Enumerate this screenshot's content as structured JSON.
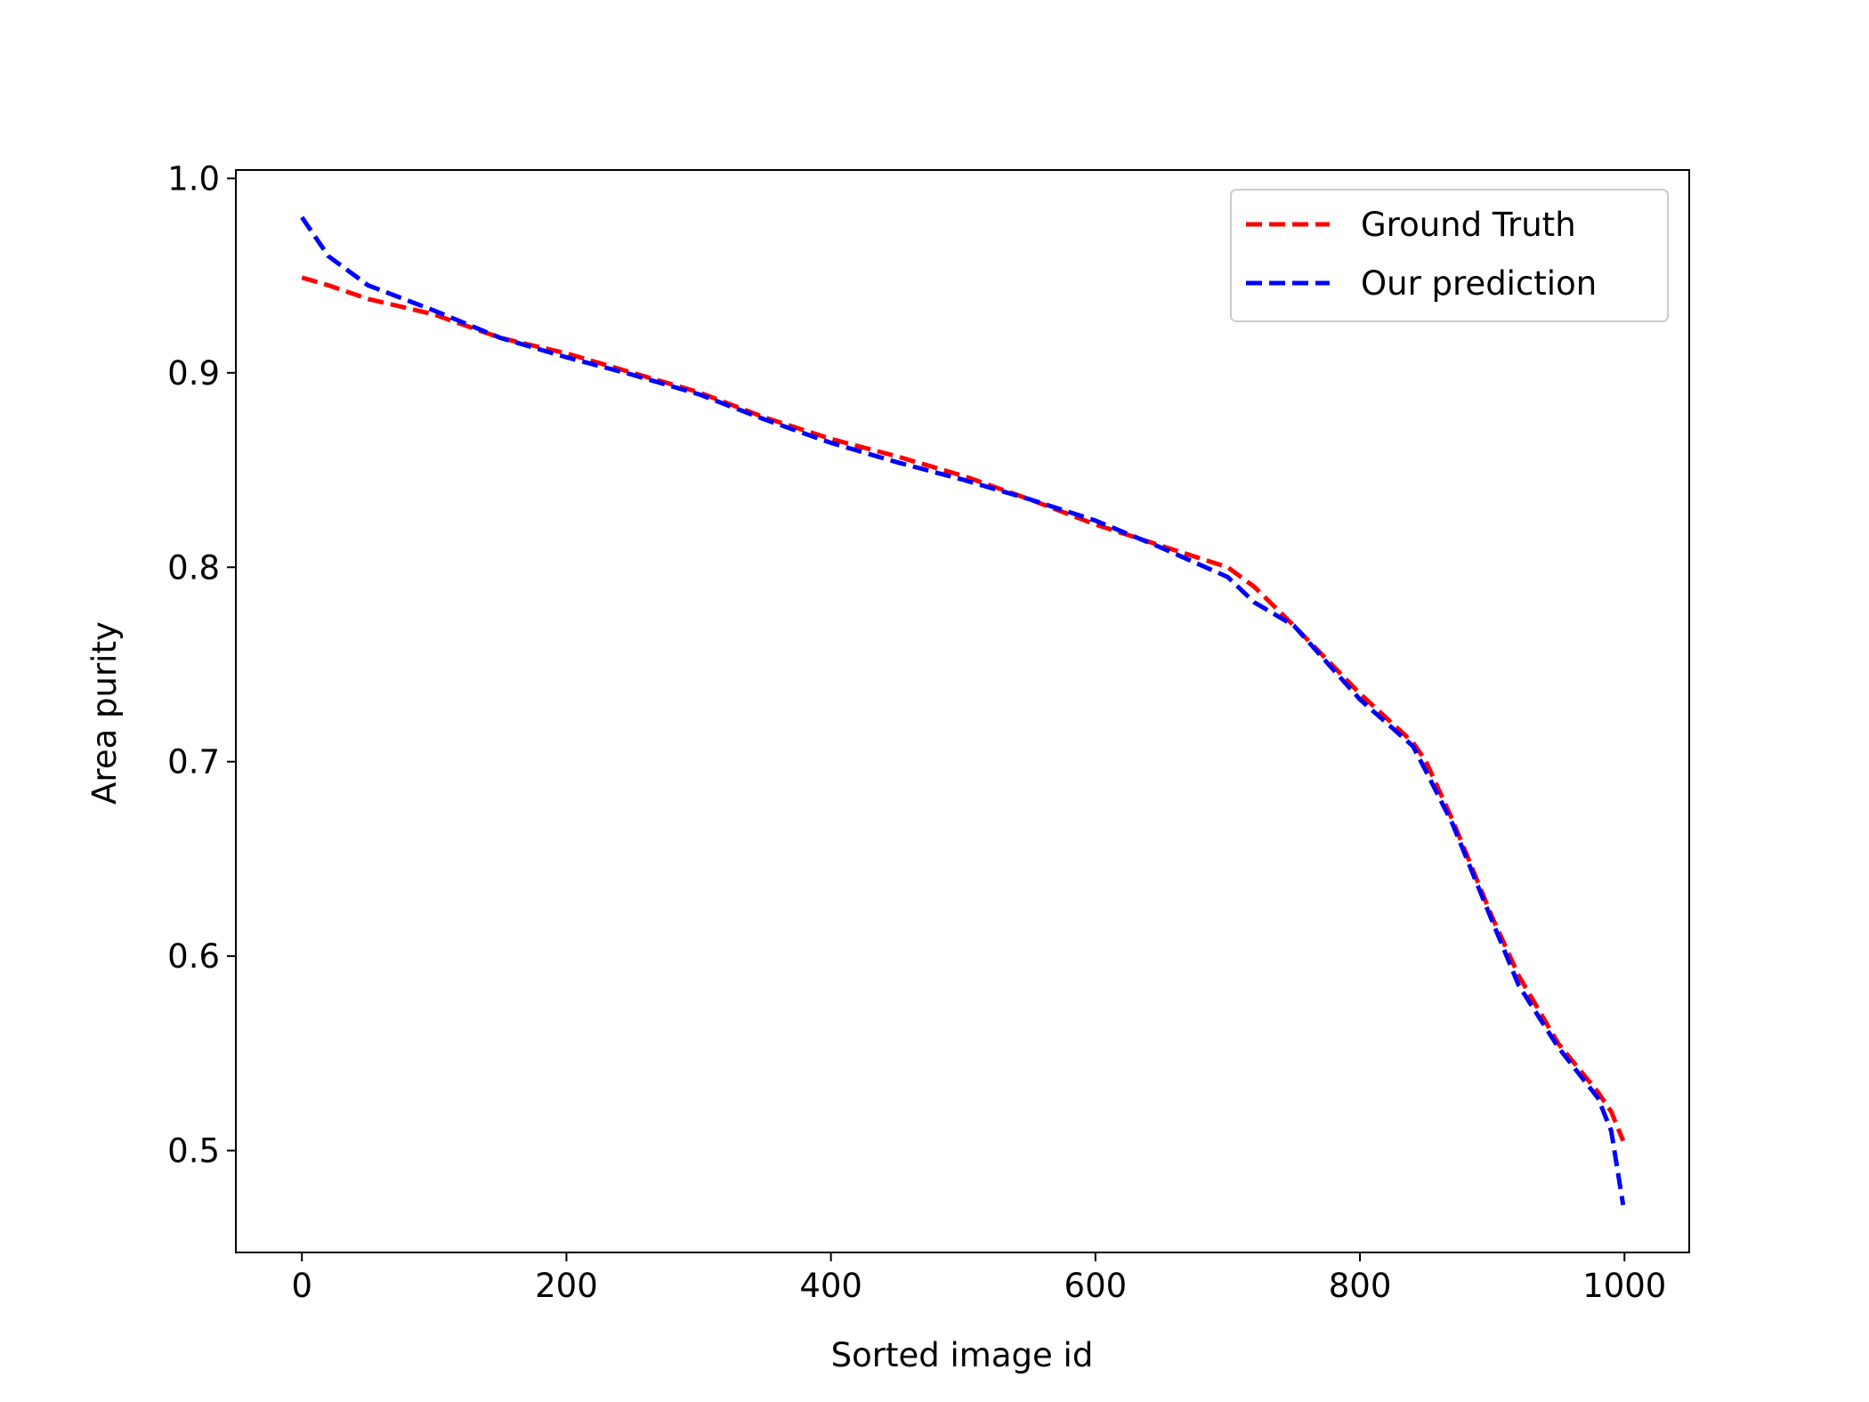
{
  "chart_data": {
    "type": "line",
    "xlabel": "Sorted image id",
    "ylabel": "Area purity",
    "x": [
      0,
      20,
      50,
      100,
      150,
      200,
      250,
      300,
      350,
      400,
      450,
      500,
      550,
      600,
      650,
      700,
      720,
      750,
      800,
      840,
      850,
      870,
      900,
      920,
      950,
      980,
      990,
      999
    ],
    "series": [
      {
        "name": "Ground Truth",
        "color": "#ff0000",
        "values": [
          0.949,
          0.945,
          0.938,
          0.93,
          0.918,
          0.91,
          0.9,
          0.89,
          0.877,
          0.866,
          0.857,
          0.847,
          0.835,
          0.822,
          0.811,
          0.8,
          0.79,
          0.77,
          0.735,
          0.71,
          0.7,
          0.67,
          0.62,
          0.59,
          0.555,
          0.53,
          0.52,
          0.505
        ]
      },
      {
        "name": "Our prediction",
        "color": "#0000ff",
        "values": [
          0.98,
          0.96,
          0.945,
          0.932,
          0.918,
          0.908,
          0.899,
          0.889,
          0.876,
          0.864,
          0.854,
          0.845,
          0.835,
          0.824,
          0.81,
          0.795,
          0.782,
          0.77,
          0.732,
          0.708,
          0.695,
          0.668,
          0.618,
          0.585,
          0.553,
          0.527,
          0.51,
          0.472
        ]
      }
    ],
    "xlim": [
      -49.95,
      1048.95
    ],
    "xticks": [
      0,
      200,
      400,
      600,
      800,
      1000
    ],
    "ylim": [
      0.4476,
      1.0043
    ],
    "yticks": [
      0.5,
      0.6,
      0.7,
      0.8,
      0.9,
      {
        "value": 1,
        "label": "1.0"
      }
    ],
    "legend": "upper right",
    "grid": false
  }
}
